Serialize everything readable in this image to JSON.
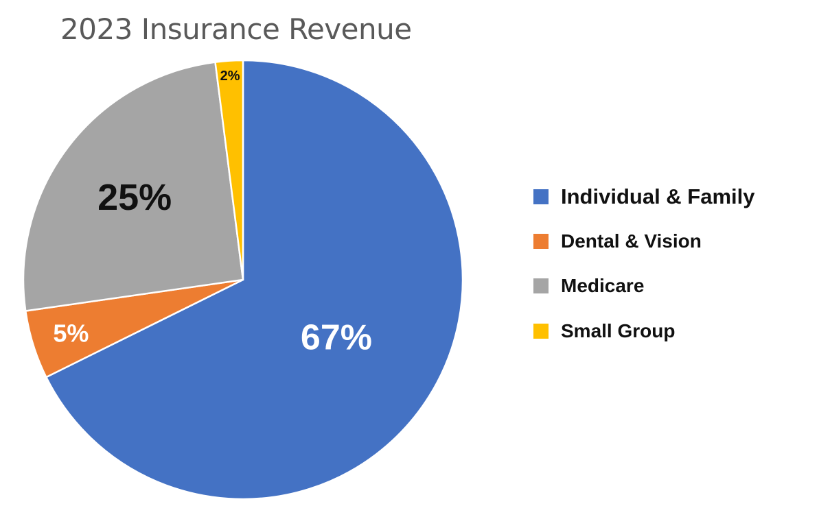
{
  "chart_data": {
    "type": "pie",
    "title": "2023 Insurance Revenue",
    "legend_position": "right",
    "start_angle": "top, clockwise",
    "slices": [
      {
        "name": "Individual & Family",
        "value": 67,
        "label": "67%",
        "color": "#4472C4",
        "label_color": "#FFFFFF"
      },
      {
        "name": "Dental & Vision",
        "value": 5,
        "label": "5%",
        "color": "#ED7D31",
        "label_color": "#FFFFFF"
      },
      {
        "name": "Medicare",
        "value": 25,
        "label": "25%",
        "color": "#A5A5A5",
        "label_color": "#111111"
      },
      {
        "name": "Small Group",
        "value": 2,
        "label": "2%",
        "color": "#FFC000",
        "label_color": "#111111"
      }
    ]
  }
}
